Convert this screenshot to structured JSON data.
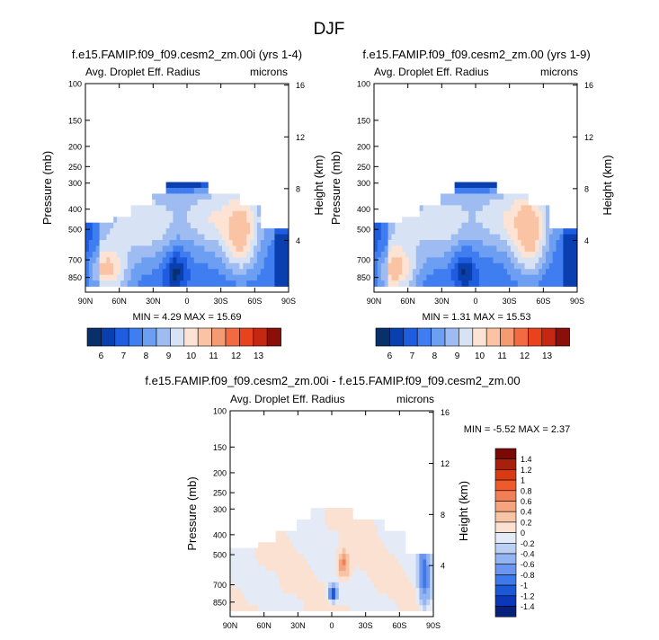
{
  "figure": {
    "title": "DJF"
  },
  "colors": {
    "abs_levels": [
      "#08306b",
      "#0a3fb0",
      "#1f5de0",
      "#3f7df0",
      "#6c9ef2",
      "#9ebcf2",
      "#d7e3f5",
      "#fde3d4",
      "#f9c3a4",
      "#f69a72",
      "#f26a42",
      "#e8431c",
      "#c42712",
      "#8a0e0a"
    ],
    "diff_levels": [
      "#06217a",
      "#0a38b8",
      "#1c58d6",
      "#3f78e8",
      "#6a96ef",
      "#93b4f2",
      "#bcd0f4",
      "#e4ebf6",
      "#fbe1d2",
      "#f8c4a6",
      "#f5a47e",
      "#f27e55",
      "#ee5a2c",
      "#d93a12",
      "#a8200c",
      "#7a0a08"
    ]
  },
  "chart_data": [
    {
      "id": "panel-left",
      "type": "heatmap",
      "title": "f.e15.FAMIP.f09_f09.cesm2_zm.00i (yrs 1-4)",
      "subtitle_left": "Avg. Droplet Eff. Radius",
      "subtitle_right": "microns",
      "ylabel": "Pressure (mb)",
      "ylabel_right": "Height (km)",
      "x_ticks": [
        "90N",
        "60N",
        "30N",
        "0",
        "30S",
        "60S",
        "90S"
      ],
      "x_tick_lat": [
        90,
        60,
        30,
        0,
        -30,
        -60,
        -90
      ],
      "y_ticks": [
        "100",
        "150",
        "200",
        "250",
        "300",
        "400",
        "500",
        "700",
        "850"
      ],
      "y_tick_p": [
        100,
        150,
        200,
        250,
        300,
        400,
        500,
        700,
        850
      ],
      "y_range_mb": [
        100,
        1000
      ],
      "right_ticks": [
        "16",
        "12",
        "8",
        "4"
      ],
      "right_tick_km": [
        16,
        12,
        8,
        4
      ],
      "stats": "MIN =   4.29   MAX =  15.69",
      "contour_levels": [
        6,
        7,
        8,
        9,
        10,
        11,
        12,
        13
      ],
      "field": "abs",
      "variant": 0
    },
    {
      "id": "panel-right",
      "type": "heatmap",
      "title": "f.e15.FAMIP.f09_f09.cesm2_zm.00 (yrs 1-9)",
      "subtitle_left": "Avg. Droplet Eff. Radius",
      "subtitle_right": "microns",
      "ylabel": "Pressure (mb)",
      "ylabel_right": "Height (km)",
      "x_ticks": [
        "90N",
        "60N",
        "30N",
        "0",
        "30S",
        "60S",
        "90S"
      ],
      "x_tick_lat": [
        90,
        60,
        30,
        0,
        -30,
        -60,
        -90
      ],
      "y_ticks": [
        "100",
        "150",
        "200",
        "250",
        "300",
        "400",
        "500",
        "700",
        "850"
      ],
      "y_tick_p": [
        100,
        150,
        200,
        250,
        300,
        400,
        500,
        700,
        850
      ],
      "y_range_mb": [
        100,
        1000
      ],
      "right_ticks": [
        "16",
        "12",
        "8",
        "4"
      ],
      "right_tick_km": [
        16,
        12,
        8,
        4
      ],
      "stats": "MIN =   1.31   MAX =  15.53",
      "contour_levels": [
        6,
        7,
        8,
        9,
        10,
        11,
        12,
        13
      ],
      "field": "abs",
      "variant": 1
    },
    {
      "id": "panel-diff",
      "type": "heatmap",
      "title": "f.e15.FAMIP.f09_f09.cesm2_zm.00i - f.e15.FAMIP.f09_f09.cesm2_zm.00",
      "subtitle_left": "Avg. Droplet Eff. Radius",
      "subtitle_right": "microns",
      "ylabel": "Pressure (mb)",
      "ylabel_right": "Height (km)",
      "x_ticks": [
        "90N",
        "60N",
        "30N",
        "0",
        "30S",
        "60S",
        "90S"
      ],
      "x_tick_lat": [
        90,
        60,
        30,
        0,
        -30,
        -60,
        -90
      ],
      "y_ticks": [
        "100",
        "150",
        "200",
        "250",
        "300",
        "400",
        "500",
        "700",
        "850"
      ],
      "y_tick_p": [
        100,
        150,
        200,
        250,
        300,
        400,
        500,
        700,
        850
      ],
      "y_range_mb": [
        100,
        1000
      ],
      "right_ticks": [
        "16",
        "12",
        "8",
        "4"
      ],
      "right_tick_km": [
        16,
        12,
        8,
        4
      ],
      "stats": "MIN =  -5.52   MAX =   2.37",
      "contour_levels": [
        -1.4,
        -1.2,
        -1,
        -0.8,
        -0.6,
        -0.4,
        -0.2,
        0,
        0.2,
        0.4,
        0.6,
        0.8,
        1,
        1.2,
        1.4
      ],
      "field": "diff",
      "variant": 0
    }
  ],
  "colorbars": {
    "left_labels": [
      "6",
      "7",
      "8",
      "9",
      "10",
      "11",
      "12",
      "13"
    ],
    "right_labels": [
      "6",
      "7",
      "8",
      "9",
      "10",
      "11",
      "12",
      "13"
    ],
    "diff_labels": [
      "1.4",
      "1.2",
      "1",
      "0.8",
      "0.6",
      "0.4",
      "0.2",
      "0",
      "-0.2",
      "-0.4",
      "-0.6",
      "-0.8",
      "-1",
      "-1.2",
      "-1.4"
    ]
  }
}
